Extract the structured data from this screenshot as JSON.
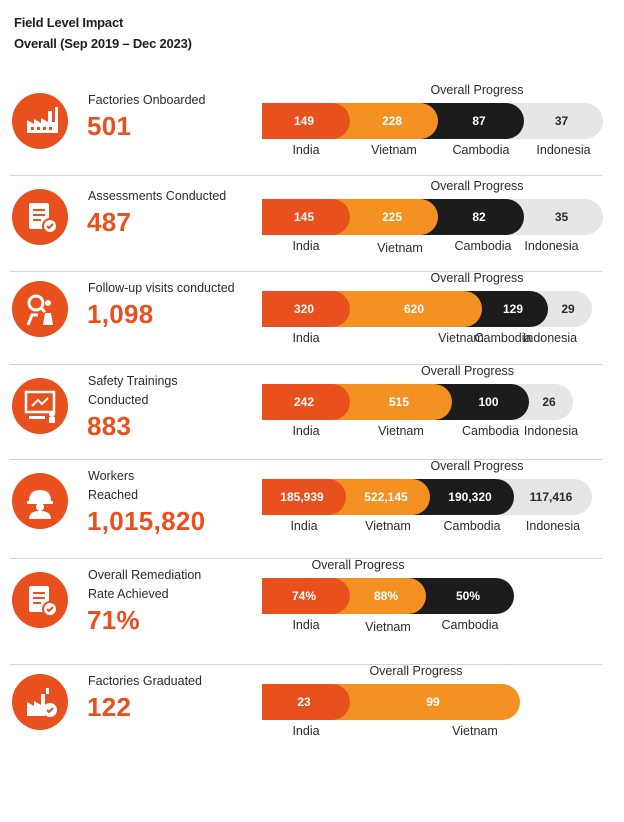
{
  "header": {
    "title": "Field Level Impact",
    "subtitle": "Overall (Sep 2019 – Dec 2023)"
  },
  "colors": {
    "india": "#e8501e",
    "vietnam": "#f39222",
    "cambodia": "#1c1c1c",
    "indonesia": "#e6e6e6",
    "accent": "#e8501e"
  },
  "chart_data": [
    {
      "type": "bar",
      "metric": [
        "Factories Onboarded"
      ],
      "total": "501",
      "icon": "factory-icon",
      "title": "Overall Progress",
      "categories": [
        "India",
        "Vietnam",
        "Cambodia",
        "Indonesia"
      ],
      "values": [
        149,
        228,
        87,
        37
      ],
      "labels": [
        "149",
        "228",
        "87",
        "37"
      ]
    },
    {
      "type": "bar",
      "metric": [
        "Assessments Conducted"
      ],
      "total": "487",
      "icon": "assessment-document-icon",
      "title": "Overall Progress",
      "categories": [
        "India",
        "Vietnam",
        "Cambodia",
        "Indonesia"
      ],
      "values": [
        145,
        225,
        82,
        35
      ],
      "labels": [
        "145",
        "225",
        "82",
        "35"
      ]
    },
    {
      "type": "bar",
      "metric": [
        "Follow-up visits conducted"
      ],
      "total": "1,098",
      "icon": "inspector-icon",
      "title": "Overall Progress",
      "categories": [
        "India",
        "Vietnam",
        "Cambodia",
        "Indonesia"
      ],
      "values": [
        320,
        620,
        129,
        29
      ],
      "labels": [
        "320",
        "620",
        "129",
        "29"
      ]
    },
    {
      "type": "bar",
      "metric": [
        "Safety Trainings",
        "Conducted"
      ],
      "total": "883",
      "icon": "training-board-icon",
      "title": "Overall Progress",
      "categories": [
        "India",
        "Vietnam",
        "Cambodia",
        "Indonesia"
      ],
      "values": [
        242,
        515,
        100,
        26
      ],
      "labels": [
        "242",
        "515",
        "100",
        "26"
      ]
    },
    {
      "type": "bar",
      "metric": [
        "Workers",
        "Reached"
      ],
      "total": "1,015,820",
      "icon": "worker-helmet-icon",
      "title": "Overall Progress",
      "categories": [
        "India",
        "Vietnam",
        "Cambodia",
        "Indonesia"
      ],
      "values": [
        185939,
        522145,
        190320,
        117416
      ],
      "labels": [
        "185,939",
        "522,145",
        "190,320",
        "117,416"
      ]
    },
    {
      "type": "bar",
      "metric": [
        "Overall Remediation",
        "Rate Achieved"
      ],
      "total": "71%",
      "icon": "remediation-document-icon",
      "title": "Overall Progress",
      "categories": [
        "India",
        "Vietnam",
        "Cambodia"
      ],
      "values": [
        74,
        88,
        50
      ],
      "labels": [
        "74%",
        "88%",
        "50%"
      ]
    },
    {
      "type": "bar",
      "metric": [
        "Factories Graduated"
      ],
      "total": "122",
      "icon": "graduated-factory-icon",
      "title": "Overall Progress",
      "categories": [
        "India",
        "Vietnam"
      ],
      "values": [
        23,
        99
      ],
      "labels": [
        "23",
        "99"
      ]
    }
  ]
}
